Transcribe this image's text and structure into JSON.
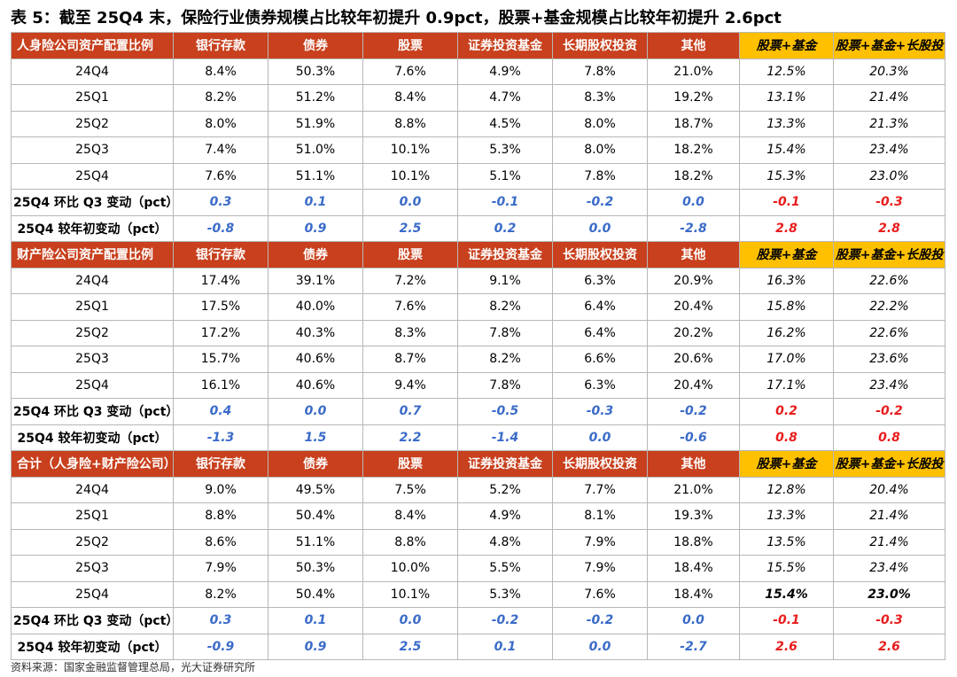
{
  "title": "表 5：截至 25Q4 末，保险行业债券规模占比较年初提升 0.9pct，股票+基金规模占比较年初提升 2.6pct",
  "columns": [
    "银行存款",
    "债券",
    "股票",
    "证券投资基金",
    "长期股权投资",
    "其他",
    "股票+基金",
    "股票+基金+长股投"
  ],
  "sections": [
    {
      "header": "人身险公司资产配置比例",
      "rows": [
        [
          "24Q4",
          "8.4%",
          "50.3%",
          "7.6%",
          "4.9%",
          "7.8%",
          "21.0%",
          "12.5%",
          "20.3%"
        ],
        [
          "25Q1",
          "8.2%",
          "51.2%",
          "8.4%",
          "4.7%",
          "8.3%",
          "19.2%",
          "13.1%",
          "21.4%"
        ],
        [
          "25Q2",
          "8.0%",
          "51.9%",
          "8.8%",
          "4.5%",
          "8.0%",
          "18.7%",
          "13.3%",
          "21.3%"
        ],
        [
          "25Q3",
          "7.4%",
          "51.0%",
          "10.1%",
          "5.3%",
          "8.0%",
          "18.2%",
          "15.4%",
          "23.4%"
        ],
        [
          "25Q4",
          "7.6%",
          "51.1%",
          "10.1%",
          "5.1%",
          "7.8%",
          "18.2%",
          "15.3%",
          "23.0%"
        ]
      ],
      "qoq": [
        "25Q4 环比 Q3 变动（pct）",
        "0.3",
        "0.1",
        "0.0",
        "-0.1",
        "-0.2",
        "0.0",
        "-0.1",
        "-0.3"
      ],
      "ytd": [
        "25Q4 较年初变动（pct）",
        "-0.8",
        "0.9",
        "2.5",
        "0.2",
        "0.0",
        "-2.8",
        "2.8",
        "2.8"
      ]
    },
    {
      "header": "财产险公司资产配置比例",
      "rows": [
        [
          "24Q4",
          "17.4%",
          "39.1%",
          "7.2%",
          "9.1%",
          "6.3%",
          "20.9%",
          "16.3%",
          "22.6%"
        ],
        [
          "25Q1",
          "17.5%",
          "40.0%",
          "7.6%",
          "8.2%",
          "6.4%",
          "20.4%",
          "15.8%",
          "22.2%"
        ],
        [
          "25Q2",
          "17.2%",
          "40.3%",
          "8.3%",
          "7.8%",
          "6.4%",
          "20.2%",
          "16.2%",
          "22.6%"
        ],
        [
          "25Q3",
          "15.7%",
          "40.6%",
          "8.7%",
          "8.2%",
          "6.6%",
          "20.6%",
          "17.0%",
          "23.6%"
        ],
        [
          "25Q4",
          "16.1%",
          "40.6%",
          "9.4%",
          "7.8%",
          "6.3%",
          "20.4%",
          "17.1%",
          "23.4%"
        ]
      ],
      "qoq": [
        "25Q4 环比 Q3 变动（pct）",
        "0.4",
        "0.0",
        "0.7",
        "-0.5",
        "-0.3",
        "-0.2",
        "0.2",
        "-0.2"
      ],
      "ytd": [
        "25Q4 较年初变动（pct）",
        "-1.3",
        "1.5",
        "2.2",
        "-1.4",
        "0.0",
        "-0.6",
        "0.8",
        "0.8"
      ]
    },
    {
      "header": "合计（人身险+财产险公司）",
      "rows": [
        [
          "24Q4",
          "9.0%",
          "49.5%",
          "7.5%",
          "5.2%",
          "7.7%",
          "21.0%",
          "12.8%",
          "20.4%"
        ],
        [
          "25Q1",
          "8.8%",
          "50.4%",
          "8.4%",
          "4.9%",
          "8.1%",
          "19.3%",
          "13.3%",
          "21.4%"
        ],
        [
          "25Q2",
          "8.6%",
          "51.1%",
          "8.8%",
          "4.8%",
          "7.9%",
          "18.8%",
          "13.5%",
          "21.4%"
        ],
        [
          "25Q3",
          "7.9%",
          "50.3%",
          "10.0%",
          "5.5%",
          "7.9%",
          "18.4%",
          "15.5%",
          "23.4%"
        ],
        [
          "25Q4",
          "8.2%",
          "50.4%",
          "10.1%",
          "5.3%",
          "7.6%",
          "18.4%",
          "15.4%",
          "23.0%"
        ]
      ],
      "qoq": [
        "25Q4 环比 Q3 变动（pct）",
        "0.3",
        "0.1",
        "0.0",
        "-0.2",
        "-0.2",
        "0.0",
        "-0.1",
        "-0.3"
      ],
      "ytd": [
        "25Q4 较年初变动（pct）",
        "-0.9",
        "0.9",
        "2.5",
        "0.1",
        "0.0",
        "-2.7",
        "2.6",
        "2.6"
      ]
    }
  ],
  "source": "资料来源：国家金融监督管理总局，光大证券研究所",
  "colors": {
    "header_bg": "#c8401d",
    "gold_bg": "#ffc000",
    "blue_text": "#3a6bc8",
    "red_text": "#e81d1d"
  }
}
